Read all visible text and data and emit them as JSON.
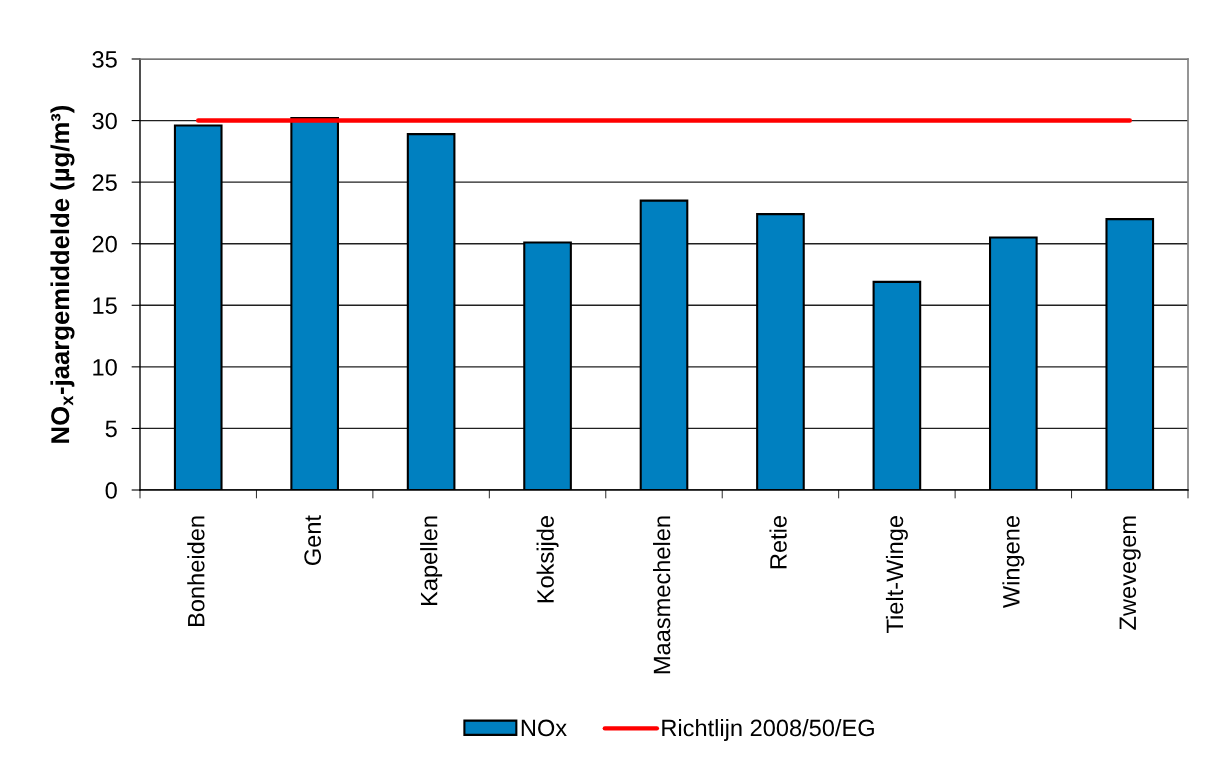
{
  "chart_data": {
    "type": "bar",
    "ylabel": "NO$_{x}$-jaargemiddelde (µg/m³)",
    "categories": [
      "Bonheiden",
      "Gent",
      "Kapellen",
      "Koksijde",
      "Maasmechelen",
      "Retie",
      "Tielt-Winge",
      "Wingene",
      "Zwevegem"
    ],
    "series": [
      {
        "name": "NOx",
        "color": "#0080c0",
        "values": [
          29.6,
          30.2,
          28.9,
          20.1,
          23.5,
          22.4,
          16.9,
          20.5,
          22.0
        ]
      },
      {
        "name": "Richtlijn 2008/50/EG",
        "type": "line",
        "color": "#ff0000",
        "values": [
          30,
          30,
          30,
          30,
          30,
          30,
          30,
          30,
          30
        ]
      }
    ],
    "ylim": [
      0,
      35
    ],
    "yticks": [
      0,
      5,
      10,
      15,
      20,
      25,
      30,
      35
    ],
    "grid": "y",
    "legend": "bottom"
  }
}
